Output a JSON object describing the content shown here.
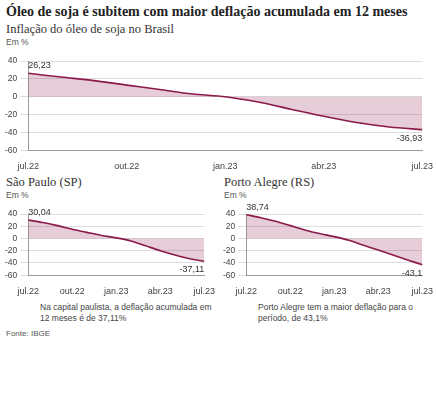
{
  "title": "Óleo de soja é subitem com maior deflação acumulada em 12 meses",
  "source": "Fonte: IBGE",
  "chart_data": [
    {
      "type": "line",
      "title": "Inflação do óleo de soja no Brasil",
      "subtitle": "Em %",
      "categories": [
        "jul.22",
        null,
        null,
        "out.22",
        null,
        null,
        "jan.23",
        null,
        null,
        "abr.23",
        null,
        null,
        "jul.23"
      ],
      "values": [
        26.23,
        22,
        18,
        13,
        8,
        3,
        0,
        -6,
        -14,
        -22,
        -29,
        -34,
        -36.93
      ],
      "value_labels": [
        "26,23",
        null,
        null,
        null,
        null,
        null,
        null,
        null,
        null,
        null,
        null,
        null,
        "-36,93"
      ],
      "color": "#8b1a4a",
      "ylim": [
        -60,
        40
      ],
      "yticks": [
        40,
        20,
        0,
        -20,
        -40,
        -60
      ],
      "grid": true
    },
    {
      "type": "line",
      "title": "São Paulo (SP)",
      "subtitle": "Em %",
      "categories": [
        "jul.22",
        null,
        null,
        "out.22",
        null,
        null,
        "jan.23",
        null,
        null,
        "abr.23",
        null,
        null,
        "jul.23"
      ],
      "values": [
        30.04,
        26,
        21,
        15,
        10,
        5,
        1,
        -4,
        -12,
        -20,
        -27,
        -33,
        -37.11
      ],
      "value_labels": [
        "30,04",
        null,
        null,
        null,
        null,
        null,
        null,
        null,
        null,
        null,
        null,
        null,
        "-37,11"
      ],
      "color": "#8b1a4a",
      "ylim": [
        -60,
        40
      ],
      "yticks": [
        40,
        20,
        0,
        -20,
        -40,
        -60
      ],
      "grid": true,
      "note": "Na capital paulista, a deflação acumulada em 12 meses é de 37,11%"
    },
    {
      "type": "line",
      "title": "Porto Alegre (RS)",
      "subtitle": "Em %",
      "categories": [
        "jul.22",
        null,
        null,
        "out.22",
        null,
        null,
        "jan.23",
        null,
        null,
        "abr.23",
        null,
        null,
        "jul.23"
      ],
      "values": [
        38.74,
        34,
        28,
        21,
        14,
        8,
        3,
        -3,
        -11,
        -19,
        -27,
        -35,
        -43.1
      ],
      "value_labels": [
        "38,74",
        null,
        null,
        null,
        null,
        null,
        null,
        null,
        null,
        null,
        null,
        null,
        "-43,1"
      ],
      "color": "#8b1a4a",
      "ylim": [
        -60,
        40
      ],
      "yticks": [
        40,
        20,
        0,
        -20,
        -40,
        -60
      ],
      "grid": true,
      "note": "Porto Alegre tem a maior deflação para o período, de 43,1%"
    }
  ]
}
